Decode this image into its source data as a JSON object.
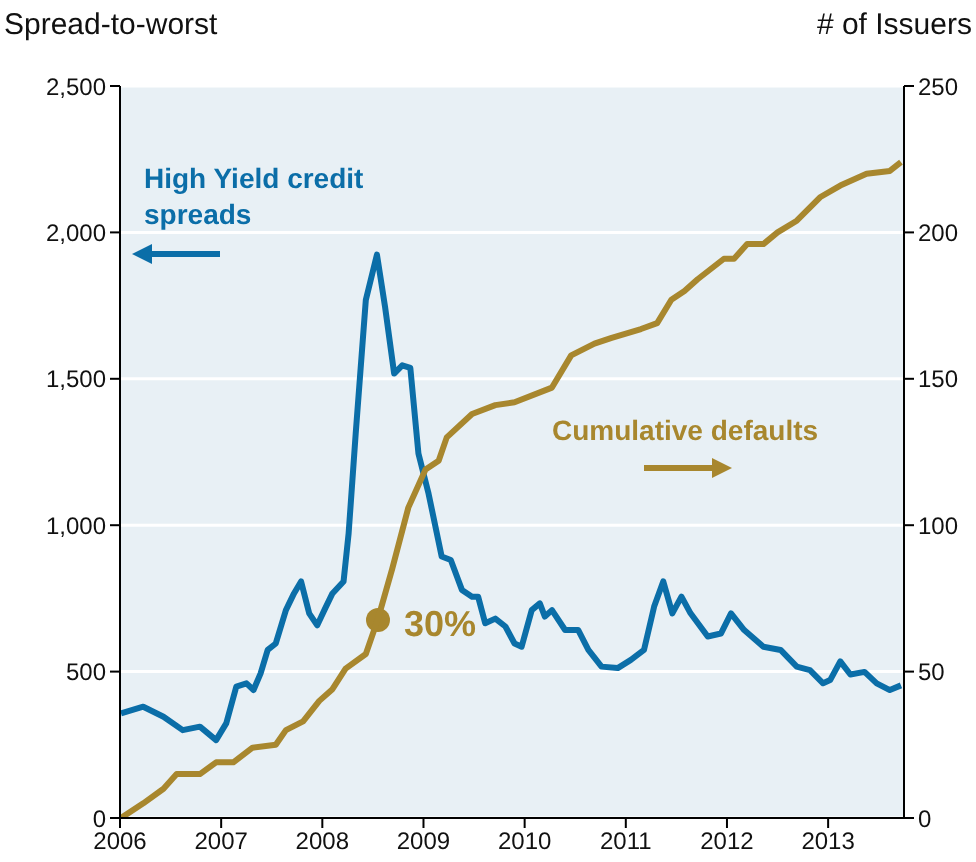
{
  "chart_data": {
    "type": "line",
    "ylabel": "Spread-to-worst",
    "y2label": "# of Issuers",
    "grid": "y",
    "xlim": [
      2006,
      2013.75
    ],
    "xticks": [
      2006,
      2007,
      2008,
      2009,
      2010,
      2011,
      2012,
      2013
    ],
    "ylim": [
      0,
      2500
    ],
    "yticks": [
      0,
      500,
      {
        "value": 1000,
        "label": "1,000"
      },
      {
        "value": 1500,
        "label": "1,500"
      },
      {
        "value": 2000,
        "label": "2,000"
      },
      {
        "value": 2500,
        "label": "2,500"
      }
    ],
    "y2lim": [
      0,
      250
    ],
    "y2ticks": [
      0,
      50,
      100,
      150,
      200,
      250
    ],
    "series": [
      {
        "name": "High Yield credit spreads",
        "color": "#0b6ea8",
        "x": [
          2006.01,
          2006.23,
          2006.43,
          2006.62,
          2006.79,
          2006.95,
          2007.05,
          2007.15,
          2007.25,
          2007.32,
          2007.39,
          2007.46,
          2007.54,
          2007.64,
          2007.72,
          2007.79,
          2007.87,
          2007.95,
          2008.02,
          2008.1,
          2008.21,
          2008.26,
          2008.33,
          2008.43,
          2008.54,
          2008.62,
          2008.71,
          2008.79,
          2008.87,
          2008.95,
          2009.05,
          2009.18,
          2009.27,
          2009.38,
          2009.48,
          2009.54,
          2009.61,
          2009.71,
          2009.81,
          2009.9,
          2009.97,
          2010.07,
          2010.15,
          2010.2,
          2010.27,
          2010.4,
          2010.53,
          2010.63,
          2010.76,
          2010.92,
          2011.05,
          2011.18,
          2011.28,
          2011.37,
          2011.46,
          2011.55,
          2011.64,
          2011.81,
          2011.94,
          2012.04,
          2012.17,
          2012.36,
          2012.53,
          2012.69,
          2012.82,
          2012.95,
          2013.02,
          2013.12,
          2013.22,
          2013.36,
          2013.48,
          2013.61,
          2013.72
        ],
        "values": [
          357,
          380,
          346,
          300,
          312,
          266,
          323,
          449,
          460,
          437,
          494,
          574,
          596,
          710,
          767,
          808,
          699,
          658,
          710,
          767,
          808,
          972,
          1313,
          1769,
          1924,
          1746,
          1518,
          1546,
          1537,
          1245,
          1108,
          893,
          881,
          779,
          756,
          756,
          665,
          681,
          654,
          596,
          585,
          710,
          733,
          688,
          710,
          642,
          642,
          574,
          517,
          512,
          540,
          574,
          722,
          808,
          699,
          756,
          699,
          620,
          630,
          699,
          642,
          585,
          574,
          517,
          505,
          460,
          471,
          535,
          490,
          499,
          460,
          437,
          453
        ]
      },
      {
        "name": "Cumulative defaults",
        "color": "#a8872e",
        "axis": "y2",
        "x": [
          2006.01,
          2006.23,
          2006.43,
          2006.56,
          2006.79,
          2006.95,
          2007.12,
          2007.31,
          2007.54,
          2007.64,
          2007.81,
          2007.97,
          2008.1,
          2008.23,
          2008.43,
          2008.55,
          2008.69,
          2008.85,
          2009.02,
          2009.15,
          2009.23,
          2009.48,
          2009.71,
          2009.9,
          2010.27,
          2010.46,
          2010.69,
          2010.86,
          2011.15,
          2011.31,
          2011.45,
          2011.58,
          2011.71,
          2011.97,
          2012.07,
          2012.2,
          2012.36,
          2012.5,
          2012.69,
          2012.92,
          2013.12,
          2013.38,
          2013.61,
          2013.72
        ],
        "values": [
          0,
          5,
          10,
          15,
          15,
          19,
          19,
          24,
          25,
          30,
          33,
          40,
          44,
          51,
          56,
          68,
          85,
          106,
          119,
          122,
          130,
          138,
          141,
          142,
          147,
          158,
          162,
          164,
          167,
          169,
          177,
          180,
          184,
          191,
          191,
          196,
          196,
          200,
          204,
          212,
          216,
          220,
          221,
          224
        ]
      }
    ],
    "annotations": [
      "30%"
    ]
  }
}
